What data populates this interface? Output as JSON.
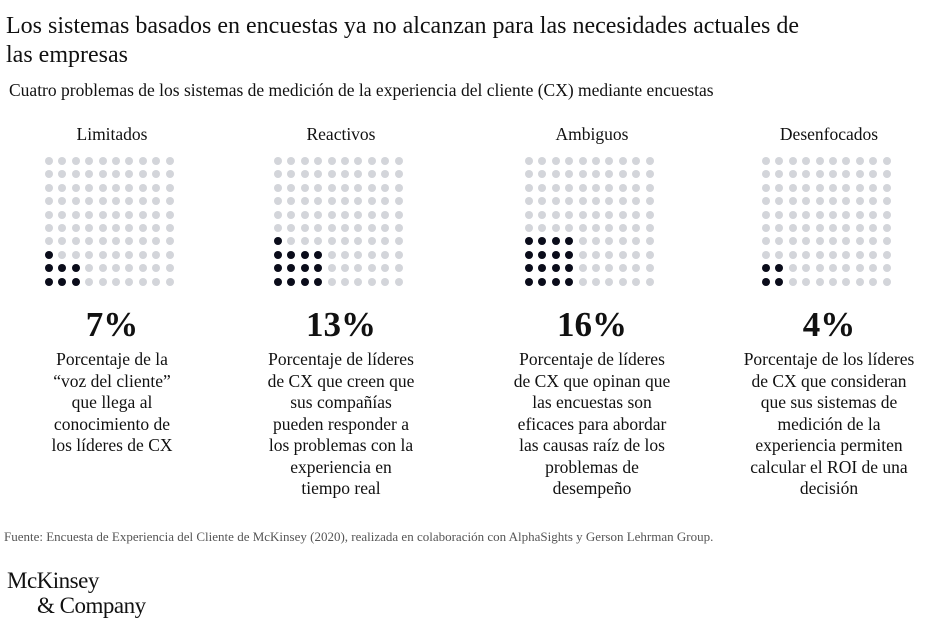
{
  "title": "Los sistemas basados en encuestas ya no alcanzan para las necesidades actuales de las empresas",
  "subtitle": "Cuatro problemas de los sistemas de medición de la experiencia del cliente (CX) mediante encuestas",
  "colors": {
    "filled": "#0a0c1a",
    "empty": "#d3d5da"
  },
  "chart_data": {
    "type": "waffle",
    "grid": "10x10",
    "categories": [
      "Limitados",
      "Reactivos",
      "Ambiguos",
      "Desenfocados"
    ],
    "values": [
      7,
      13,
      16,
      4
    ],
    "labels": [
      "7%",
      "13%",
      "16%",
      "4%"
    ],
    "descriptions": [
      [
        "Porcentaje de la",
        "“voz del cliente”",
        "que llega al",
        "conocimiento de",
        "los líderes de CX"
      ],
      [
        "Porcentaje de líderes",
        "de CX que creen que",
        "sus compañías",
        "pueden responder a",
        "los problemas con la",
        "experiencia en",
        "tiempo real"
      ],
      [
        "Porcentaje de líderes",
        "de CX que opinan que",
        "las encuestas son",
        "eficaces para abordar",
        "las causas raíz de los",
        "problemas de",
        "desempeño"
      ],
      [
        "Porcentaje de los líderes",
        "de CX que consideran",
        "que sus sistemas de",
        "medición de la",
        "experiencia permiten",
        "calcular el ROI de una",
        "decisión"
      ]
    ]
  },
  "source": "Fuente: Encuesta de Experiencia del Cliente de McKinsey (2020), realizada en colaboración con AlphaSights y Gerson Lehrman Group.",
  "logo": {
    "line1": "McKinsey",
    "line2": "& Company"
  }
}
